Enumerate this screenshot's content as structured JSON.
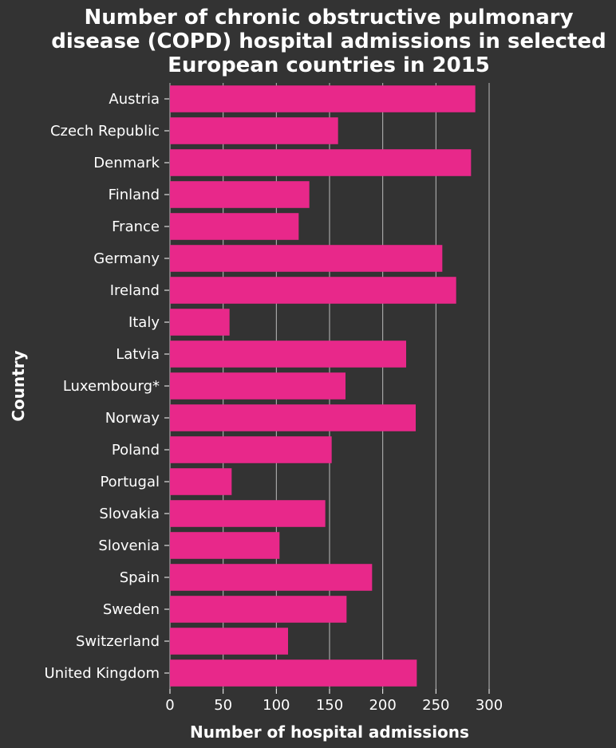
{
  "chart_data": {
    "type": "bar",
    "orientation": "horizontal",
    "title": "Number of chronic obstructive pulmonary disease (COPD) hospital admissions in selected European countries in 2015",
    "title_lines": [
      "Number of chronic obstructive pulmonary",
      "disease (COPD) hospital admissions in selected",
      "European countries in 2015"
    ],
    "xlabel": "Number of hospital admissions",
    "ylabel": "Country",
    "categories": [
      "Austria",
      "Czech Republic",
      "Denmark",
      "Finland",
      "France",
      "Germany",
      "Ireland",
      "Italy",
      "Latvia",
      "Luxembourg*",
      "Norway",
      "Poland",
      "Portugal",
      "Slovakia",
      "Slovenia",
      "Spain",
      "Sweden",
      "Switzerland",
      "United Kingdom"
    ],
    "values": [
      287,
      158,
      283,
      131,
      121,
      256,
      269,
      56,
      222,
      165,
      231,
      152,
      58,
      146,
      103,
      190,
      166,
      111,
      232
    ],
    "xlim": [
      0,
      300
    ],
    "xticks": [
      "0",
      "50",
      "100",
      "150",
      "200",
      "250",
      "300"
    ],
    "grid": true,
    "legend": "none",
    "bar_color": "#e8288a",
    "background_color": "#333333",
    "grid_color": "#bbbbbb"
  }
}
